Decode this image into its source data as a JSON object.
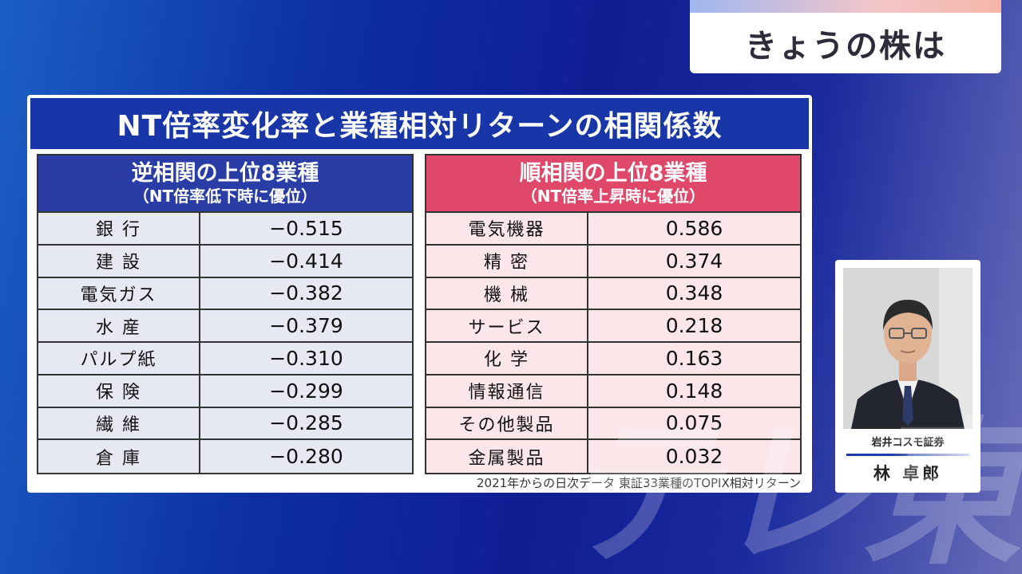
{
  "program": {
    "title": "きょうの株は"
  },
  "panel": {
    "title": "NT倍率変化率と業種相対リターンの相関係数",
    "footnote": "2021年からの日次データ 東証33業種のTOPIX相対リターン"
  },
  "negative_table": {
    "heading": "逆相関の上位8業種",
    "subheading": "（NT倍率低下時に優位）",
    "header_color": "#2a3da6",
    "rows": [
      {
        "name": "銀 行",
        "value": "−0.515"
      },
      {
        "name": "建 設",
        "value": "−0.414"
      },
      {
        "name": "電気ガス",
        "value": "−0.382"
      },
      {
        "name": "水 産",
        "value": "−0.379"
      },
      {
        "name": "パルプ紙",
        "value": "−0.310"
      },
      {
        "name": "保 険",
        "value": "−0.299"
      },
      {
        "name": "繊 維",
        "value": "−0.285"
      },
      {
        "name": "倉 庫",
        "value": "−0.280"
      }
    ]
  },
  "positive_table": {
    "heading": "順相関の上位8業種",
    "subheading": "（NT倍率上昇時に優位）",
    "header_color": "#e0486a",
    "rows": [
      {
        "name": "電気機器",
        "value": "0.586"
      },
      {
        "name": "精 密",
        "value": "0.374"
      },
      {
        "name": "機 械",
        "value": "0.348"
      },
      {
        "name": "サービス",
        "value": "0.218"
      },
      {
        "name": "化 学",
        "value": "0.163"
      },
      {
        "name": "情報通信",
        "value": "0.148"
      },
      {
        "name": "その他製品",
        "value": "0.075"
      },
      {
        "name": "金属製品",
        "value": "0.032"
      }
    ]
  },
  "presenter": {
    "company": "岩井コスモ証券",
    "name": "林 卓郎"
  },
  "watermark": "テレ東"
}
